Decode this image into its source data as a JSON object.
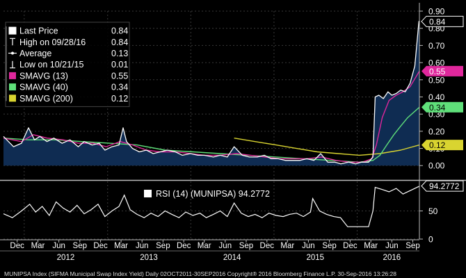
{
  "colors": {
    "background": "#000000",
    "area_fill": "#0f2c52",
    "price_line": "#ffffff",
    "sma13": "#e0279c",
    "sma40": "#5fe07a",
    "sma200": "#d9d430",
    "rsi_line": "#ffffff"
  },
  "chart_data": [
    {
      "type": "area",
      "panel": "price",
      "ylim": [
        -0.08,
        0.9
      ],
      "yticks": [
        "0.00",
        "0.10",
        "0.20",
        "0.30",
        "0.40",
        "0.50",
        "0.60",
        "0.70",
        "0.80",
        "0.90"
      ],
      "ytick_values": [
        0,
        0.1,
        0.2,
        0.3,
        0.4,
        0.5,
        0.6,
        0.7,
        0.8,
        0.9
      ],
      "x_range": [
        "2011-10-02",
        "2016-09-30"
      ],
      "legend": {
        "placement": "top-left",
        "entries": [
          {
            "label": "Last Price",
            "value": "0.84",
            "marker": "square",
            "color": "#ffffff"
          },
          {
            "label": "High on 09/28/16",
            "value": "0.84",
            "marker": "high",
            "color": "#ffffff"
          },
          {
            "label": "Average",
            "value": "0.13",
            "marker": "average",
            "color": "#ffffff"
          },
          {
            "label": "Low on 10/21/15",
            "value": "0.01",
            "marker": "low",
            "color": "#ffffff"
          },
          {
            "label": "SMAVG (13)",
            "value": "0.55",
            "marker": "square",
            "color": "#e0279c"
          },
          {
            "label": "SMAVG (40)",
            "value": "0.34",
            "marker": "square",
            "color": "#5fe07a"
          },
          {
            "label": "SMAVG (200)",
            "value": "0.12",
            "marker": "square",
            "color": "#d9d430"
          }
        ]
      },
      "series": [
        {
          "name": "Last Price",
          "color": "#ffffff",
          "tag": "0.84",
          "x": [
            "2011-10-02",
            "2011-11-15",
            "2011-12-20",
            "2012-01-20",
            "2012-02-15",
            "2012-03-10",
            "2012-04-10",
            "2012-05-10",
            "2012-06-15",
            "2012-07-20",
            "2012-08-25",
            "2012-09-20",
            "2012-10-25",
            "2012-11-25",
            "2012-12-20",
            "2013-01-20",
            "2013-02-20",
            "2013-03-10",
            "2013-03-25",
            "2013-04-20",
            "2013-05-20",
            "2013-06-20",
            "2013-07-20",
            "2013-08-20",
            "2013-09-20",
            "2013-10-25",
            "2013-11-25",
            "2013-12-30",
            "2014-02-01",
            "2014-03-01",
            "2014-04-10",
            "2014-05-10",
            "2014-06-10",
            "2014-07-10",
            "2014-08-15",
            "2014-09-15",
            "2014-10-20",
            "2014-11-20",
            "2014-12-20",
            "2015-01-20",
            "2015-02-20",
            "2015-03-25",
            "2015-04-25",
            "2015-05-25",
            "2015-06-25",
            "2015-07-25",
            "2015-08-25",
            "2015-09-25",
            "2015-10-21",
            "2015-11-25",
            "2015-12-25",
            "2016-01-20",
            "2016-02-20",
            "2016-03-10",
            "2016-03-20",
            "2016-04-05",
            "2016-04-25",
            "2016-05-15",
            "2016-06-01",
            "2016-06-20",
            "2016-07-10",
            "2016-07-30",
            "2016-08-20",
            "2016-09-10",
            "2016-09-28",
            "2016-09-30"
          ],
          "values": [
            0.17,
            0.11,
            0.13,
            0.22,
            0.15,
            0.17,
            0.14,
            0.16,
            0.13,
            0.15,
            0.11,
            0.14,
            0.12,
            0.13,
            0.09,
            0.11,
            0.12,
            0.22,
            0.14,
            0.1,
            0.08,
            0.09,
            0.07,
            0.08,
            0.09,
            0.08,
            0.06,
            0.07,
            0.06,
            0.06,
            0.05,
            0.06,
            0.05,
            0.11,
            0.06,
            0.05,
            0.05,
            0.06,
            0.04,
            0.04,
            0.03,
            0.03,
            0.03,
            0.04,
            0.03,
            0.07,
            0.02,
            0.02,
            0.01,
            0.02,
            0.01,
            0.02,
            0.02,
            0.05,
            0.4,
            0.41,
            0.39,
            0.43,
            0.41,
            0.42,
            0.44,
            0.43,
            0.48,
            0.58,
            0.84,
            0.84
          ]
        },
        {
          "name": "SMAVG (13)",
          "color": "#e0279c",
          "tag": "0.55",
          "x": [
            "2011-10-02",
            "2011-12-20",
            "2012-02-10",
            "2012-04-10",
            "2012-06-20",
            "2012-08-25",
            "2012-10-30",
            "2012-12-25",
            "2013-02-25",
            "2013-04-20",
            "2013-06-20",
            "2013-08-20",
            "2013-10-25",
            "2013-12-30",
            "2014-03-01",
            "2014-05-10",
            "2014-07-20",
            "2014-09-20",
            "2014-11-25",
            "2015-01-25",
            "2015-03-25",
            "2015-05-25",
            "2015-07-30",
            "2015-09-30",
            "2015-11-30",
            "2016-01-25",
            "2016-03-05",
            "2016-03-25",
            "2016-04-20",
            "2016-05-20",
            "2016-06-20",
            "2016-07-20",
            "2016-08-20",
            "2016-09-30"
          ],
          "values": [
            0.16,
            0.14,
            0.18,
            0.16,
            0.15,
            0.13,
            0.13,
            0.11,
            0.14,
            0.12,
            0.09,
            0.08,
            0.08,
            0.07,
            0.06,
            0.06,
            0.07,
            0.06,
            0.05,
            0.04,
            0.04,
            0.04,
            0.05,
            0.03,
            0.02,
            0.02,
            0.04,
            0.12,
            0.28,
            0.38,
            0.41,
            0.43,
            0.46,
            0.55
          ]
        },
        {
          "name": "SMAVG (40)",
          "color": "#5fe07a",
          "tag": "0.34",
          "x": [
            "2011-10-02",
            "2012-01-20",
            "2012-05-15",
            "2012-09-10",
            "2013-01-10",
            "2013-05-10",
            "2013-09-10",
            "2014-01-10",
            "2014-05-10",
            "2014-09-10",
            "2015-01-10",
            "2015-05-10",
            "2015-09-10",
            "2016-01-10",
            "2016-03-10",
            "2016-04-10",
            "2016-05-10",
            "2016-06-10",
            "2016-07-10",
            "2016-08-10",
            "2016-09-30"
          ],
          "values": [
            0.16,
            0.15,
            0.15,
            0.14,
            0.13,
            0.12,
            0.09,
            0.08,
            0.07,
            0.06,
            0.05,
            0.04,
            0.03,
            0.02,
            0.03,
            0.06,
            0.12,
            0.18,
            0.23,
            0.28,
            0.34
          ]
        },
        {
          "name": "SMAVG (200)",
          "color": "#d9d430",
          "tag": "0.12",
          "x": [
            "2014-07-10",
            "2014-10-10",
            "2015-01-10",
            "2015-04-10",
            "2015-07-10",
            "2015-10-10",
            "2016-01-10",
            "2016-04-10",
            "2016-07-10",
            "2016-09-30"
          ],
          "values": [
            0.16,
            0.14,
            0.12,
            0.1,
            0.08,
            0.07,
            0.06,
            0.07,
            0.09,
            0.12
          ]
        }
      ]
    },
    {
      "type": "line",
      "panel": "rsi",
      "ylim": [
        0,
        100
      ],
      "yticks": [
        "0",
        "50"
      ],
      "ytick_values": [
        0,
        50
      ],
      "legend": {
        "label": "RSI (14) (MUNIPSA) 94.2772",
        "marker": "square",
        "color": "#ffffff"
      },
      "series": [
        {
          "name": "RSI (14)",
          "color": "#ffffff",
          "tag": "94.2772",
          "x": [
            "2011-10-02",
            "2011-11-10",
            "2011-12-20",
            "2012-01-25",
            "2012-02-20",
            "2012-03-20",
            "2012-04-20",
            "2012-05-20",
            "2012-06-20",
            "2012-07-20",
            "2012-08-20",
            "2012-09-20",
            "2012-10-20",
            "2012-11-20",
            "2012-12-20",
            "2013-01-20",
            "2013-02-20",
            "2013-03-15",
            "2013-04-10",
            "2013-05-10",
            "2013-06-10",
            "2013-07-10",
            "2013-08-10",
            "2013-09-10",
            "2013-10-10",
            "2013-11-10",
            "2013-12-10",
            "2014-01-10",
            "2014-02-10",
            "2014-03-10",
            "2014-04-10",
            "2014-05-10",
            "2014-06-10",
            "2014-07-10",
            "2014-08-10",
            "2014-09-10",
            "2014-10-10",
            "2014-11-10",
            "2014-12-10",
            "2015-01-10",
            "2015-02-10",
            "2015-03-10",
            "2015-04-10",
            "2015-05-10",
            "2015-06-10",
            "2015-06-20",
            "2015-07-20",
            "2015-08-20",
            "2015-09-20",
            "2015-10-20",
            "2015-11-20",
            "2015-12-20",
            "2016-01-20",
            "2016-02-20",
            "2016-03-10",
            "2016-03-20",
            "2016-04-20",
            "2016-05-20",
            "2016-06-20",
            "2016-07-20",
            "2016-08-20",
            "2016-09-30"
          ],
          "values": [
            45,
            38,
            50,
            62,
            48,
            58,
            42,
            66,
            55,
            48,
            60,
            45,
            52,
            62,
            40,
            50,
            58,
            78,
            52,
            44,
            38,
            46,
            40,
            50,
            44,
            38,
            48,
            42,
            46,
            38,
            44,
            50,
            40,
            64,
            46,
            40,
            44,
            38,
            46,
            42,
            40,
            44,
            46,
            40,
            48,
            72,
            50,
            44,
            40,
            38,
            22,
            22,
            22,
            22,
            50,
            92,
            88,
            84,
            90,
            80,
            86,
            94
          ]
        }
      ]
    }
  ],
  "x_axis": {
    "month_labels": [
      {
        "label": "Dec",
        "date": "2011-12-01"
      },
      {
        "label": "Mar",
        "date": "2012-03-01"
      },
      {
        "label": "Jun",
        "date": "2012-06-01"
      },
      {
        "label": "Sep",
        "date": "2012-09-01"
      },
      {
        "label": "Dec",
        "date": "2012-12-01"
      },
      {
        "label": "Mar",
        "date": "2013-03-01"
      },
      {
        "label": "Jun",
        "date": "2013-06-01"
      },
      {
        "label": "Sep",
        "date": "2013-09-01"
      },
      {
        "label": "Dec",
        "date": "2013-12-01"
      },
      {
        "label": "Mar",
        "date": "2014-03-01"
      },
      {
        "label": "Jun",
        "date": "2014-06-01"
      },
      {
        "label": "Sep",
        "date": "2014-09-01"
      },
      {
        "label": "Dec",
        "date": "2014-12-01"
      },
      {
        "label": "Mar",
        "date": "2015-03-01"
      },
      {
        "label": "Jun",
        "date": "2015-06-01"
      },
      {
        "label": "Sep",
        "date": "2015-09-01"
      },
      {
        "label": "Dec",
        "date": "2015-12-01"
      },
      {
        "label": "Mar",
        "date": "2016-03-01"
      },
      {
        "label": "Jun",
        "date": "2016-06-01"
      },
      {
        "label": "Sep",
        "date": "2016-09-01"
      }
    ],
    "year_labels": [
      {
        "label": "2012",
        "date": "2012-07-01"
      },
      {
        "label": "2013",
        "date": "2013-07-01"
      },
      {
        "label": "2014",
        "date": "2014-07-01"
      },
      {
        "label": "2015",
        "date": "2015-07-01"
      },
      {
        "label": "2016",
        "date": "2016-06-01"
      }
    ]
  },
  "footer": "MUNIPSA Index (SIFMA Municipal Swap Index Yield) Daily 02OCT2011-30SEP2016  Copyright® 2016 Bloomberg Finance L.P.    30-Sep-2016 13:26:28"
}
